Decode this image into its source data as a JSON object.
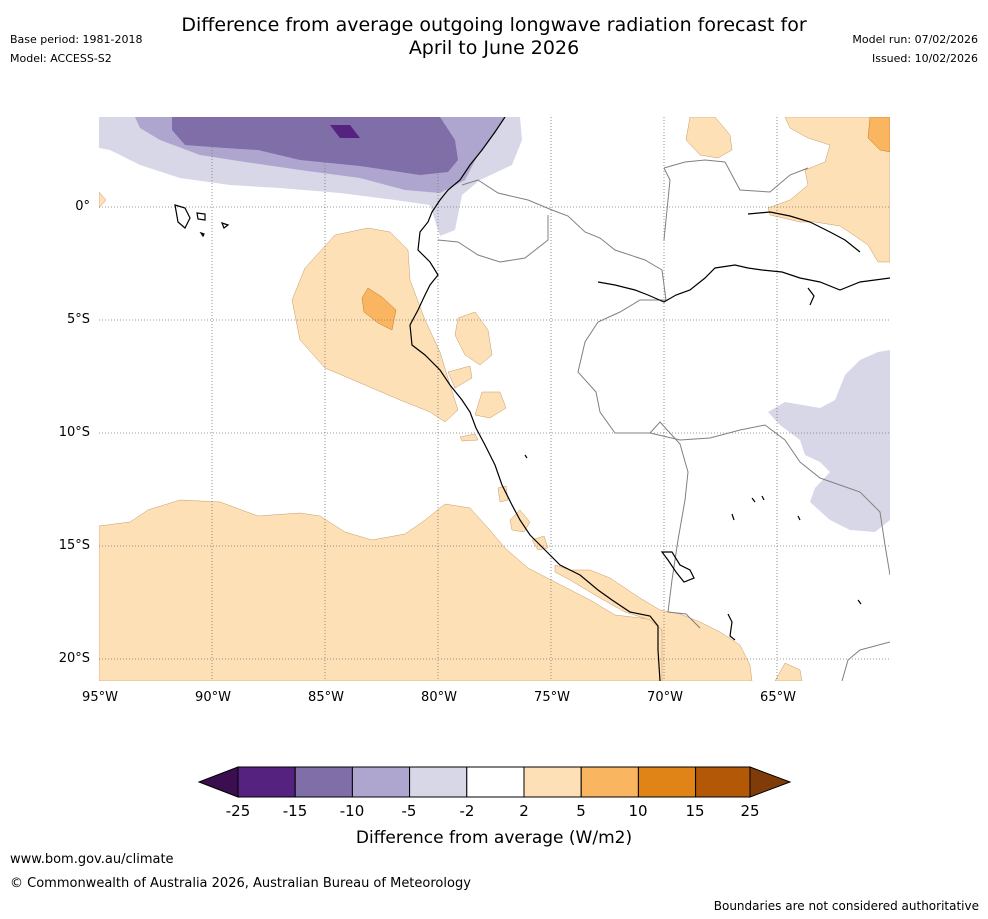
{
  "header": {
    "title_line1": "Difference from average outgoing longwave radiation forecast for",
    "title_line2": "April to June 2026",
    "base_period": "Base period: 1981-2018",
    "model": "Model: ACCESS-S2",
    "model_run": "Model run: 07/02/2026",
    "issued": "Issued: 10/02/2026"
  },
  "map": {
    "lat_labels": [
      "0°",
      "5°S",
      "10°S",
      "15°S",
      "20°S"
    ],
    "lon_labels": [
      "95°W",
      "90°W",
      "85°W",
      "80°W",
      "75°W",
      "70°W",
      "65°W"
    ]
  },
  "colorbar": {
    "title": "Difference from average (W/m2)",
    "tick_labels": [
      "-25",
      "-15",
      "-10",
      "-5",
      "-2",
      "2",
      "5",
      "10",
      "15",
      "25"
    ],
    "colors": [
      "#3b0f4f",
      "#55227f",
      "#7f6ea8",
      "#aea6cf",
      "#d8d7e8",
      "#ffffff",
      "#fde0b6",
      "#f9b55f",
      "#e08418",
      "#b35806",
      "#7f3b08"
    ]
  },
  "footer": {
    "website": "www.bom.gov.au/climate",
    "copyright": "© Commonwealth of Australia 2026, Australian Bureau of Meteorology",
    "disclaimer": "Boundaries are not considered authoritative"
  }
}
